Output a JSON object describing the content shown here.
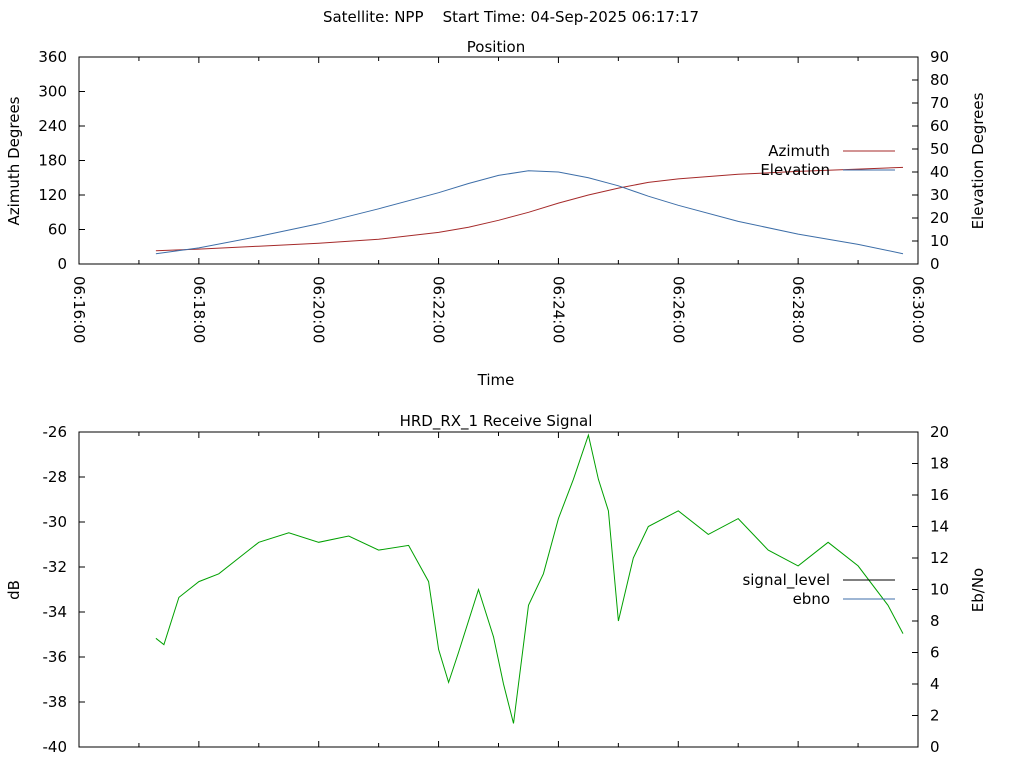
{
  "header": {
    "title": "Satellite: NPP    Start Time: 04-Sep-2025 06:17:17"
  },
  "chart_data": [
    {
      "type": "line",
      "title": "Position",
      "xlabel": "Time",
      "ylabel": "Azimuth Degrees",
      "y2label": "Elevation Degrees",
      "x_ticks": [
        "06:16:00",
        "06:18:00",
        "06:20:00",
        "06:22:00",
        "06:24:00",
        "06:26:00",
        "06:28:00",
        "06:30:00"
      ],
      "xlim": [
        "06:16:00",
        "06:30:00"
      ],
      "ylim": [
        0,
        360
      ],
      "y_ticks": [
        "0",
        "60",
        "120",
        "180",
        "240",
        "300",
        "360"
      ],
      "y2lim": [
        0,
        90
      ],
      "y2_ticks": [
        "0",
        "10",
        "20",
        "30",
        "40",
        "50",
        "60",
        "70",
        "80",
        "90"
      ],
      "grid": false,
      "legend_position": "right",
      "series": [
        {
          "name": "Azimuth",
          "axis": "y",
          "color": "#a52a2a",
          "x": [
            "06:17:17",
            "06:18:00",
            "06:19:00",
            "06:20:00",
            "06:21:00",
            "06:22:00",
            "06:22:30",
            "06:23:00",
            "06:23:30",
            "06:24:00",
            "06:24:30",
            "06:25:00",
            "06:25:30",
            "06:26:00",
            "06:27:00",
            "06:28:00",
            "06:29:00",
            "06:29:45"
          ],
          "values": [
            23,
            26,
            31,
            36,
            43,
            55,
            64,
            76,
            90,
            106,
            120,
            132,
            142,
            148,
            156,
            161,
            165,
            168
          ]
        },
        {
          "name": "Elevation",
          "axis": "y2",
          "color": "#3d6ea8",
          "x": [
            "06:17:17",
            "06:18:00",
            "06:19:00",
            "06:20:00",
            "06:21:00",
            "06:22:00",
            "06:22:30",
            "06:23:00",
            "06:23:30",
            "06:24:00",
            "06:24:30",
            "06:25:00",
            "06:25:30",
            "06:26:00",
            "06:27:00",
            "06:28:00",
            "06:29:00",
            "06:29:45"
          ],
          "values": [
            4.5,
            7,
            12,
            17.5,
            24,
            31,
            35,
            38.5,
            40.5,
            40,
            37.5,
            34,
            29.5,
            25.5,
            18.5,
            13,
            8.5,
            4.5
          ]
        }
      ]
    },
    {
      "type": "line",
      "title": "HRD_RX_1 Receive Signal",
      "ylabel": "dB",
      "y2label": "Eb/No",
      "xlim": [
        "06:16:00",
        "06:30:00"
      ],
      "ylim": [
        -40,
        -26
      ],
      "y_ticks": [
        "-40",
        "-38",
        "-36",
        "-34",
        "-32",
        "-30",
        "-28",
        "-26"
      ],
      "y2lim": [
        0,
        20
      ],
      "y2_ticks": [
        "0",
        "2",
        "4",
        "6",
        "8",
        "10",
        "12",
        "14",
        "16",
        "18",
        "20"
      ],
      "grid": false,
      "legend_position": "right",
      "series": [
        {
          "name": "signal_level",
          "axis": "y",
          "color": "#000000",
          "x": [],
          "values": []
        },
        {
          "name": "ebno",
          "axis": "y2",
          "color": "#00a000",
          "x": [
            "06:17:17",
            "06:17:25",
            "06:17:40",
            "06:18:00",
            "06:18:20",
            "06:18:40",
            "06:19:00",
            "06:19:30",
            "06:20:00",
            "06:20:30",
            "06:21:00",
            "06:21:30",
            "06:21:50",
            "06:22:00",
            "06:22:10",
            "06:22:20",
            "06:22:40",
            "06:22:55",
            "06:23:05",
            "06:23:15",
            "06:23:30",
            "06:23:45",
            "06:24:00",
            "06:24:15",
            "06:24:30",
            "06:24:40",
            "06:24:50",
            "06:25:00",
            "06:25:15",
            "06:25:30",
            "06:26:00",
            "06:26:30",
            "06:27:00",
            "06:27:30",
            "06:28:00",
            "06:28:30",
            "06:29:00",
            "06:29:30",
            "06:29:45"
          ],
          "values": [
            6.9,
            6.5,
            9.5,
            10.5,
            11.0,
            12.0,
            13.0,
            13.6,
            13.0,
            13.4,
            12.5,
            12.8,
            10.5,
            6.2,
            4.1,
            6.0,
            10.0,
            7.0,
            4.0,
            1.5,
            9.0,
            11.0,
            14.5,
            17.0,
            19.8,
            17.0,
            15.0,
            8.0,
            12.0,
            14.0,
            15.0,
            13.5,
            14.5,
            12.5,
            11.5,
            13.0,
            11.5,
            9.0,
            7.2
          ]
        }
      ]
    }
  ]
}
